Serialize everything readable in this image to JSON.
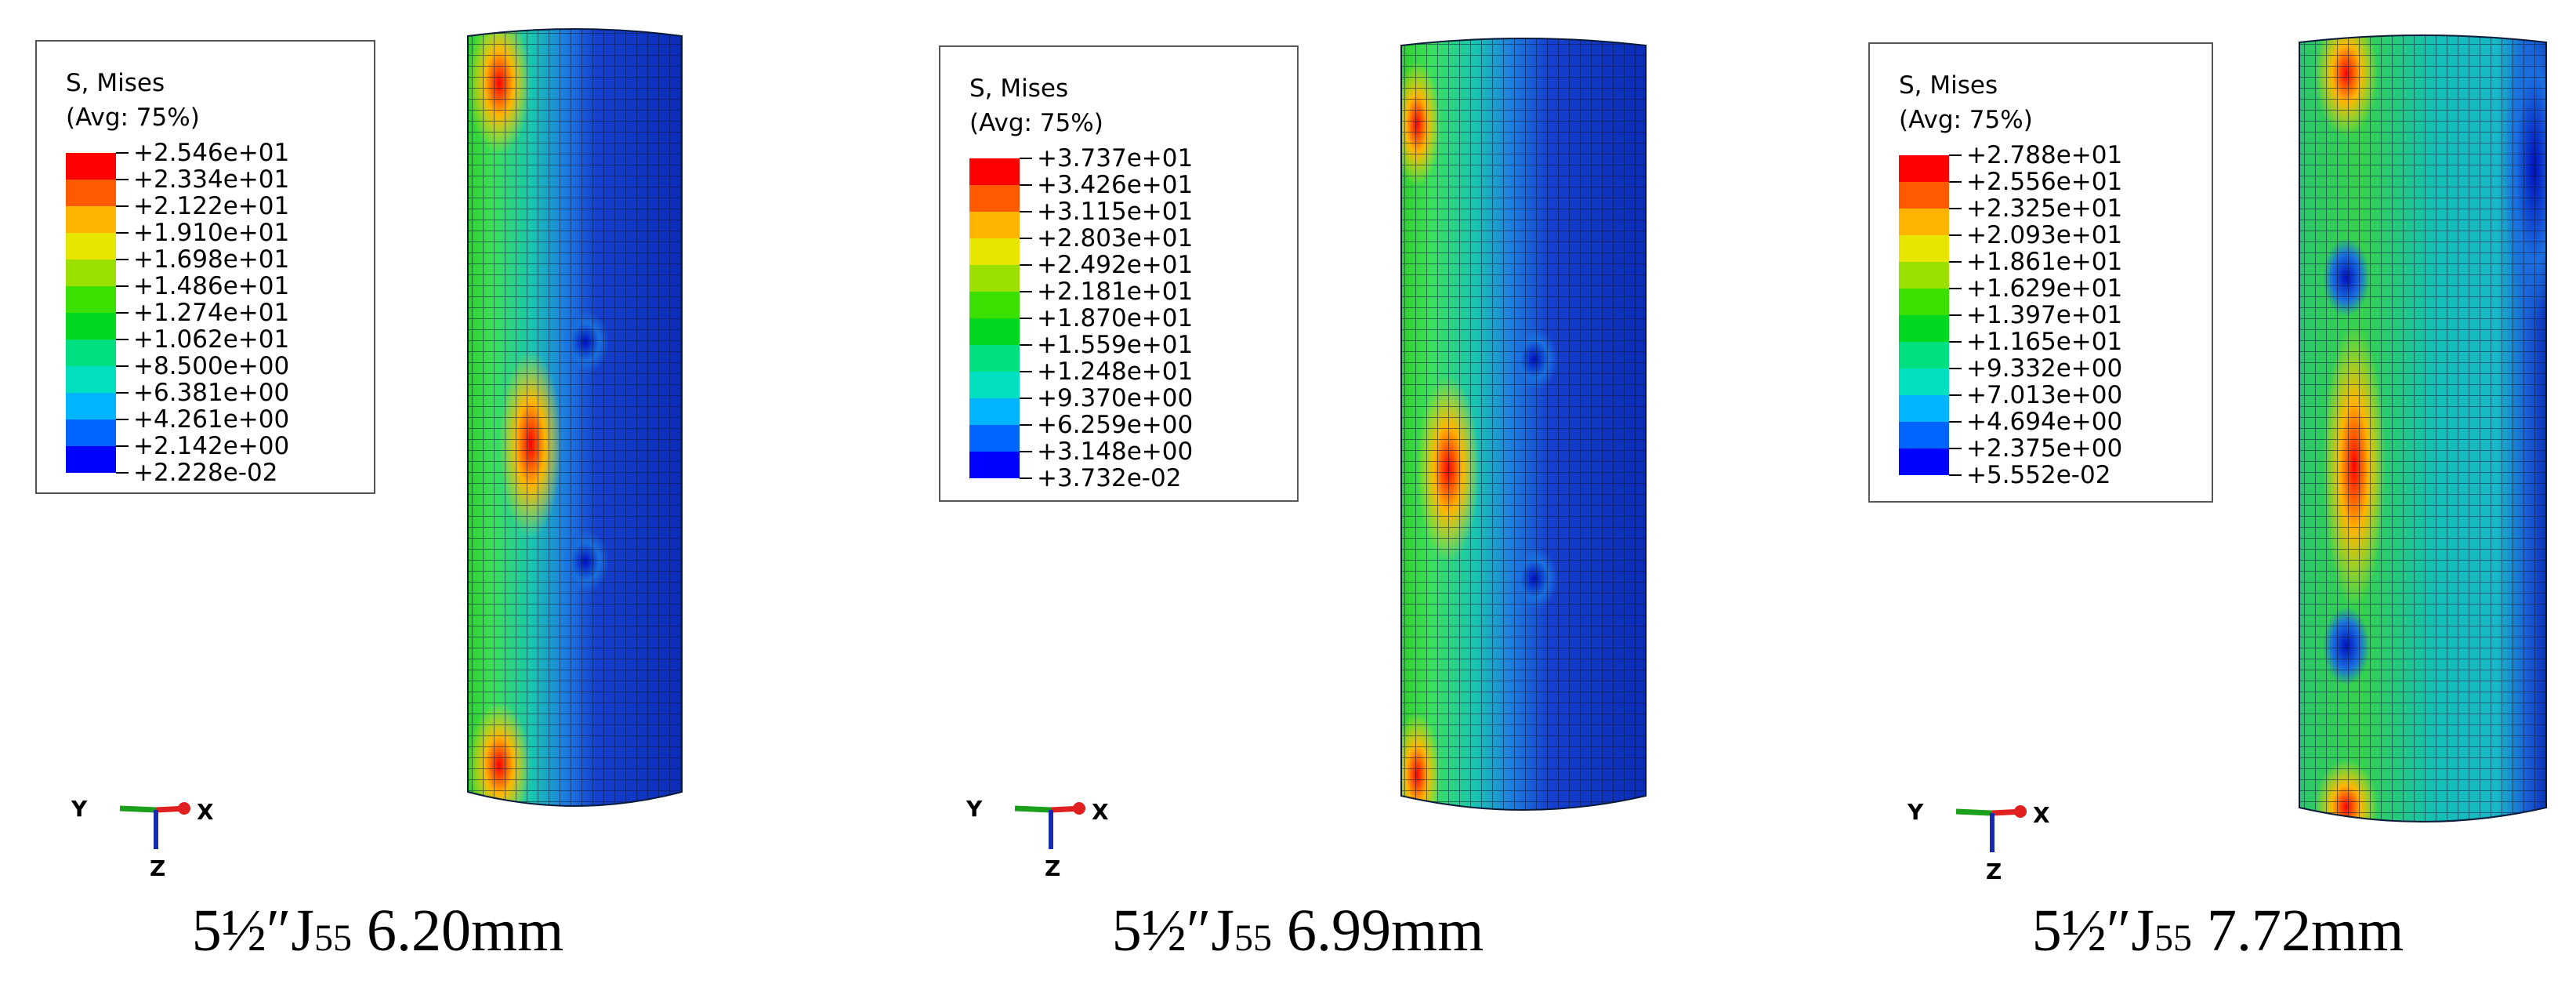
{
  "panels": [
    {
      "legend": {
        "title": "S, Mises",
        "subtitle": "(Avg: 75%)",
        "levels": [
          "+2.546e+01",
          "+2.334e+01",
          "+2.122e+01",
          "+1.910e+01",
          "+1.698e+01",
          "+1.486e+01",
          "+1.274e+01",
          "+1.062e+01",
          "+8.500e+00",
          "+6.381e+00",
          "+4.261e+00",
          "+2.142e+00",
          "+2.228e-02"
        ]
      },
      "triad": {
        "y": "Y",
        "x": "X",
        "z": "Z"
      },
      "caption": {
        "prefix": "5½″J",
        "grade": "55",
        "size": " 6.20mm"
      }
    },
    {
      "legend": {
        "title": "S, Mises",
        "subtitle": "(Avg: 75%)",
        "levels": [
          "+3.737e+01",
          "+3.426e+01",
          "+3.115e+01",
          "+2.803e+01",
          "+2.492e+01",
          "+2.181e+01",
          "+1.870e+01",
          "+1.559e+01",
          "+1.248e+01",
          "+9.370e+00",
          "+6.259e+00",
          "+3.148e+00",
          "+3.732e-02"
        ]
      },
      "triad": {
        "y": "Y",
        "x": "X",
        "z": "Z"
      },
      "caption": {
        "prefix": "5½″J",
        "grade": "55",
        "size": " 6.99mm"
      }
    },
    {
      "legend": {
        "title": "S, Mises",
        "subtitle": "(Avg: 75%)",
        "levels": [
          "+2.788e+01",
          "+2.556e+01",
          "+2.325e+01",
          "+2.093e+01",
          "+1.861e+01",
          "+1.629e+01",
          "+1.397e+01",
          "+1.165e+01",
          "+9.332e+00",
          "+7.013e+00",
          "+4.694e+00",
          "+2.375e+00",
          "+5.552e-02"
        ]
      },
      "triad": {
        "y": "Y",
        "x": "X",
        "z": "Z"
      },
      "caption": {
        "prefix": "5½″J",
        "grade": "55",
        "size": " 7.72mm"
      }
    }
  ]
}
